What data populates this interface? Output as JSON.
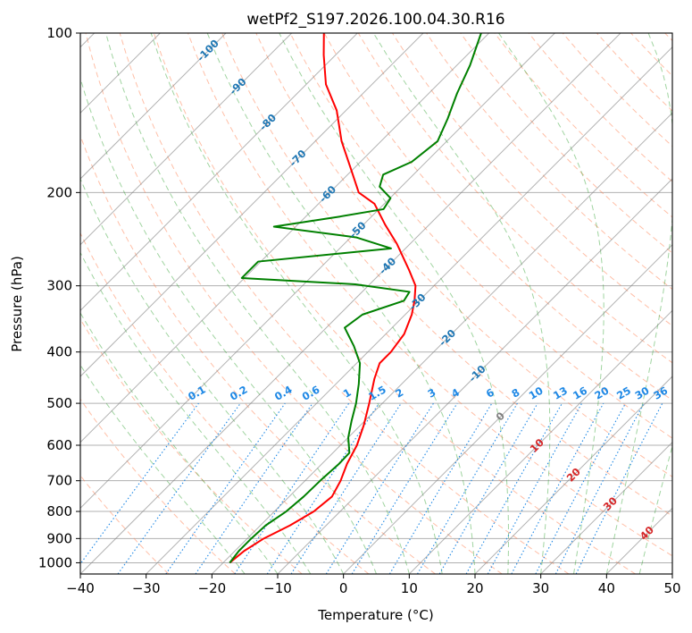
{
  "chart_data": {
    "type": "line",
    "title": "wetPf2_S197.2026.100.04.30.R16",
    "xlabel": "Temperature (°C)",
    "ylabel": "Pressure (hPa)",
    "xlim": [
      -40,
      50
    ],
    "ylim": [
      1050,
      100
    ],
    "y_scale": "log",
    "skew": true,
    "grid": true,
    "x_ticks": [
      "−40",
      "−30",
      "−20",
      "−10",
      "0",
      "10",
      "20",
      "30",
      "40",
      "50"
    ],
    "y_ticks": [
      "100",
      "200",
      "300",
      "400",
      "500",
      "600",
      "700",
      "800",
      "900",
      "1000"
    ],
    "colors": {
      "temperature": "#ff0000",
      "dewpoint": "#008000",
      "dry_adiabat": "#ff7f50",
      "moist_adiabat": "#2ca02c",
      "mixing_ratio": "#1e88e5",
      "isotherm": "#808080",
      "isotherm_label_cold": "#1f77b4",
      "isotherm_label_warm": "#d62728",
      "isotherm_label_zero": "#808080"
    },
    "series": [
      {
        "key": "temperature",
        "values": [
          {
            "p": 1000,
            "t": -19.0
          },
          {
            "p": 950,
            "t": -18.6
          },
          {
            "p": 900,
            "t": -17.5
          },
          {
            "p": 850,
            "t": -15.5
          },
          {
            "p": 800,
            "t": -14.0
          },
          {
            "p": 750,
            "t": -13.5
          },
          {
            "p": 700,
            "t": -14.6
          },
          {
            "p": 650,
            "t": -16.2
          },
          {
            "p": 600,
            "t": -17.5
          },
          {
            "p": 550,
            "t": -19.5
          },
          {
            "p": 500,
            "t": -22.0
          },
          {
            "p": 450,
            "t": -24.9
          },
          {
            "p": 420,
            "t": -26.5
          },
          {
            "p": 400,
            "t": -26.5
          },
          {
            "p": 370,
            "t": -27.2
          },
          {
            "p": 340,
            "t": -29.0
          },
          {
            "p": 320,
            "t": -30.7
          },
          {
            "p": 300,
            "t": -32.8
          },
          {
            "p": 280,
            "t": -36.2
          },
          {
            "p": 250,
            "t": -42.0
          },
          {
            "p": 230,
            "t": -46.7
          },
          {
            "p": 210,
            "t": -51.5
          },
          {
            "p": 200,
            "t": -55.6
          },
          {
            "p": 180,
            "t": -60.5
          },
          {
            "p": 160,
            "t": -66.0
          },
          {
            "p": 140,
            "t": -71.4
          },
          {
            "p": 125,
            "t": -77.0
          },
          {
            "p": 110,
            "t": -81.8
          },
          {
            "p": 100,
            "t": -85.1
          }
        ]
      },
      {
        "key": "dewpoint",
        "values": [
          {
            "p": 1000,
            "t": -19.0
          },
          {
            "p": 950,
            "t": -19.4
          },
          {
            "p": 900,
            "t": -19.4
          },
          {
            "p": 850,
            "t": -19.2
          },
          {
            "p": 800,
            "t": -18.2
          },
          {
            "p": 750,
            "t": -17.8
          },
          {
            "p": 700,
            "t": -17.7
          },
          {
            "p": 650,
            "t": -17.4
          },
          {
            "p": 620,
            "t": -17.5
          },
          {
            "p": 580,
            "t": -20.0
          },
          {
            "p": 540,
            "t": -22.0
          },
          {
            "p": 500,
            "t": -24.0
          },
          {
            "p": 460,
            "t": -26.5
          },
          {
            "p": 420,
            "t": -29.5
          },
          {
            "p": 390,
            "t": -33.0
          },
          {
            "p": 360,
            "t": -37.2
          },
          {
            "p": 340,
            "t": -36.5
          },
          {
            "p": 320,
            "t": -32.3
          },
          {
            "p": 308,
            "t": -32.8
          },
          {
            "p": 298,
            "t": -42.2
          },
          {
            "p": 290,
            "t": -60.4
          },
          {
            "p": 270,
            "t": -60.4
          },
          {
            "p": 255,
            "t": -42.2
          },
          {
            "p": 243,
            "t": -49.2
          },
          {
            "p": 232,
            "t": -63.3
          },
          {
            "p": 222,
            "t": -54.8
          },
          {
            "p": 215,
            "t": -49.3
          },
          {
            "p": 205,
            "t": -49.9
          },
          {
            "p": 195,
            "t": -53.3
          },
          {
            "p": 185,
            "t": -54.6
          },
          {
            "p": 175,
            "t": -52.2
          },
          {
            "p": 160,
            "t": -51.4
          },
          {
            "p": 145,
            "t": -53.3
          },
          {
            "p": 130,
            "t": -55.7
          },
          {
            "p": 115,
            "t": -58.0
          },
          {
            "p": 100,
            "t": -61.2
          }
        ]
      }
    ],
    "isotherm_labels": [
      "-100",
      "-90",
      "-80",
      "-70",
      "-60",
      "-50",
      "-40",
      "-30",
      "-20",
      "-10",
      "0",
      "10",
      "20",
      "30",
      "40"
    ],
    "mixing_ratio_labels": [
      "0.1",
      "0.2",
      "0.4",
      "0.6",
      "1",
      "1.5",
      "2",
      "3",
      "4",
      "6",
      "8",
      "10",
      "13",
      "16",
      "20",
      "25",
      "30",
      "36"
    ],
    "mixing_ratio_values": [
      0.1,
      0.2,
      0.4,
      0.6,
      1,
      1.5,
      2,
      3,
      4,
      6,
      8,
      10,
      13,
      16,
      20,
      25,
      30,
      36
    ]
  }
}
